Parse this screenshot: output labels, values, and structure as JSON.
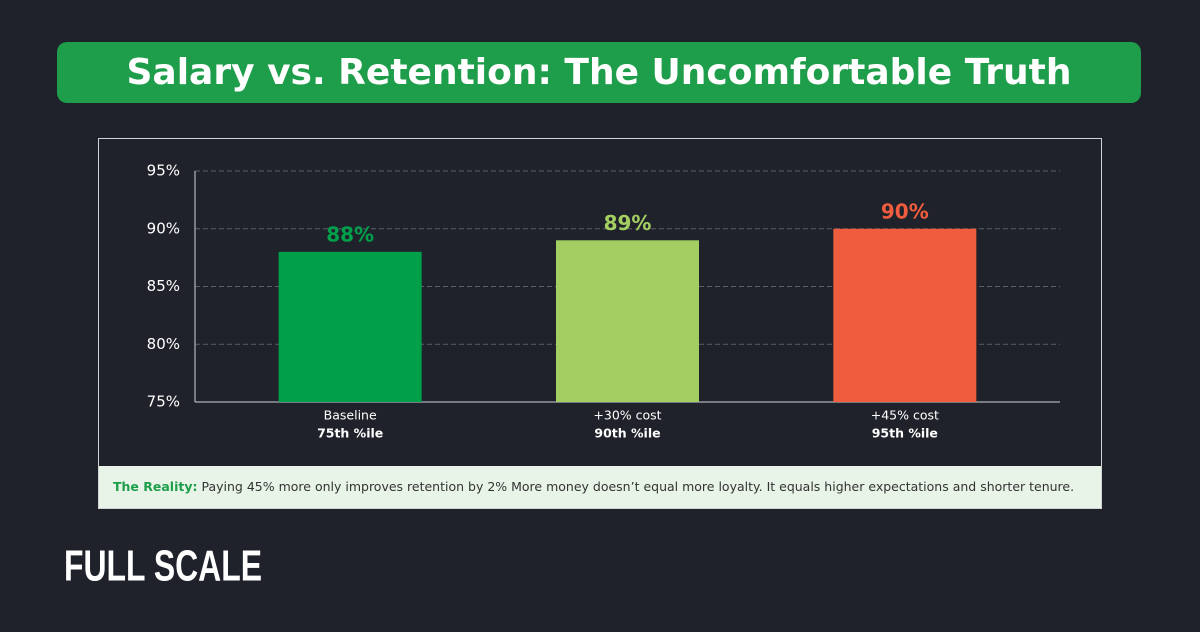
{
  "chart_data": {
    "type": "bar",
    "title": "Salary vs. Retention: The Uncomfortable Truth",
    "categories": [
      "Baseline",
      "+30% cost",
      "+45% cost"
    ],
    "category_sublabels": [
      "75th %ile",
      "90th %ile",
      "95th %ile"
    ],
    "values": [
      88,
      89,
      90
    ],
    "value_labels": [
      "88%",
      "89%",
      "90%"
    ],
    "colors": [
      "#00a04b",
      "#a3cf62",
      "#f05d3e"
    ],
    "ylim": [
      75,
      95
    ],
    "yticks": [
      {
        "value": 75,
        "label": "75%"
      },
      {
        "value": 80,
        "label": "80%"
      },
      {
        "value": 85,
        "label": "85%"
      },
      {
        "value": 90,
        "label": "90%"
      },
      {
        "value": 95,
        "label": "95%"
      }
    ],
    "grid": true
  },
  "note": {
    "label": "The Reality:",
    "text": "Paying 45% more only improves retention by 2% More money doesn’t equal more loyalty. It equals higher expectations and shorter tenure."
  },
  "logo": "FULL SCALE"
}
